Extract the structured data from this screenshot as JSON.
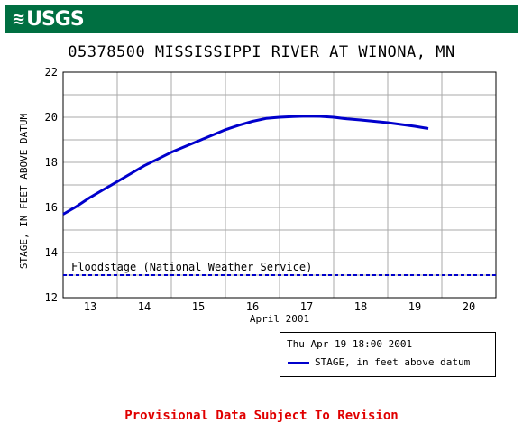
{
  "header": {
    "logo_text": "USGS",
    "logo_icon": "usgs-wave-icon",
    "brand_color": "#006f41"
  },
  "chart_data": {
    "type": "line",
    "title": "05378500 MISSISSIPPI RIVER AT WINONA, MN",
    "xlabel": "April 2001",
    "ylabel": "STAGE, IN FEET ABOVE DATUM",
    "x_ticks": [
      "13",
      "14",
      "15",
      "16",
      "17",
      "18",
      "19",
      "20"
    ],
    "xlim": [
      12.5,
      20.5
    ],
    "ylim": [
      12,
      22
    ],
    "y_ticks": [
      "12",
      "14",
      "16",
      "18",
      "20",
      "22"
    ],
    "grid": true,
    "series": [
      {
        "name": "STAGE, in feet above datum",
        "color": "#0000cc",
        "x": [
          12.5,
          12.75,
          13.0,
          13.25,
          13.5,
          13.75,
          14.0,
          14.25,
          14.5,
          14.75,
          15.0,
          15.25,
          15.5,
          15.75,
          16.0,
          16.25,
          16.5,
          16.75,
          17.0,
          17.25,
          17.5,
          17.75,
          18.0,
          18.25,
          18.5,
          18.75,
          19.0,
          19.25
        ],
        "y": [
          15.7,
          16.05,
          16.45,
          16.8,
          17.15,
          17.5,
          17.85,
          18.15,
          18.45,
          18.7,
          18.95,
          19.2,
          19.45,
          19.65,
          19.82,
          19.95,
          20.0,
          20.03,
          20.05,
          20.04,
          20.0,
          19.93,
          19.88,
          19.82,
          19.76,
          19.68,
          19.6,
          19.5
        ]
      }
    ],
    "reference_lines": [
      {
        "label": "Floodstage (National Weather Service)",
        "y": 13,
        "color": "#0000cc",
        "style": "dashed"
      }
    ]
  },
  "legend": {
    "timestamp": "Thu Apr 19 18:00 2001",
    "series_label": "STAGE, in feet above datum"
  },
  "footer": {
    "provisional_text": "Provisional Data Subject To Revision",
    "color": "#e00000"
  }
}
